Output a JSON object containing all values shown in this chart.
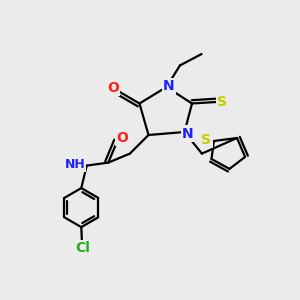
{
  "bg_color": "#ebebeb",
  "atom_colors": {
    "C": "#000000",
    "N": "#2020ff",
    "O": "#ff2020",
    "S": "#cccc00",
    "Cl": "#22aa22",
    "H": "#888888"
  },
  "bond_color": "#000000",
  "bond_width": 1.6,
  "figsize": [
    3.0,
    3.0
  ],
  "dpi": 100
}
